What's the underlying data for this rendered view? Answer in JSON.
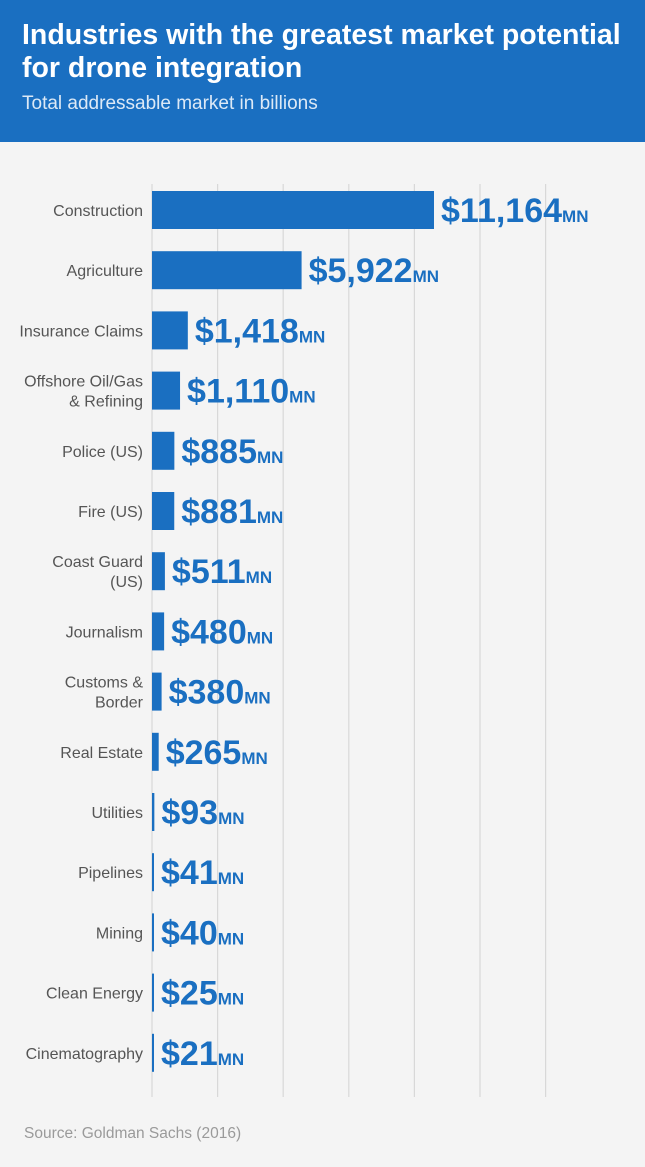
{
  "header": {
    "title": "Industries with the greatest market potential for drone integration",
    "subtitle": "Total addressable market in billions"
  },
  "footer": {
    "source": "Source: Goldman Sachs (2016)"
  },
  "colors": {
    "header_bg": "#1a6fc1",
    "bar": "#1a6fc1",
    "value_label": "#1a6fc1",
    "category_label": "#555555",
    "gridline": "#d8d8d8",
    "background": "#f4f4f4"
  },
  "chart_data": {
    "type": "bar",
    "orientation": "horizontal",
    "title": "Industries with the greatest market potential for drone integration",
    "subtitle": "Total addressable market in billions",
    "categories": [
      [
        "Construction"
      ],
      [
        "Agriculture"
      ],
      [
        "Insurance Claims"
      ],
      [
        "Offshore Oil/Gas",
        "& Refining"
      ],
      [
        "Police (US)"
      ],
      [
        "Fire (US)"
      ],
      [
        "Coast Guard",
        "(US)"
      ],
      [
        "Journalism"
      ],
      [
        "Customs &",
        "Border"
      ],
      [
        "Real Estate"
      ],
      [
        "Utilities"
      ],
      [
        "Pipelines"
      ],
      [
        "Mining"
      ],
      [
        "Clean Energy"
      ],
      [
        "Cinematography"
      ]
    ],
    "values": [
      11164,
      5922,
      1418,
      1110,
      885,
      881,
      511,
      480,
      380,
      265,
      93,
      41,
      40,
      25,
      21
    ],
    "value_labels": [
      "$11,164",
      "$5,922",
      "$1,418",
      "$1,110",
      "$885",
      "$881",
      "$511",
      "$480",
      "$380",
      "$265",
      "$93",
      "$41",
      "$40",
      "$25",
      "$21"
    ],
    "value_suffix": "MN",
    "xlim": [
      0,
      15500
    ],
    "grid": true,
    "legend": "none"
  }
}
